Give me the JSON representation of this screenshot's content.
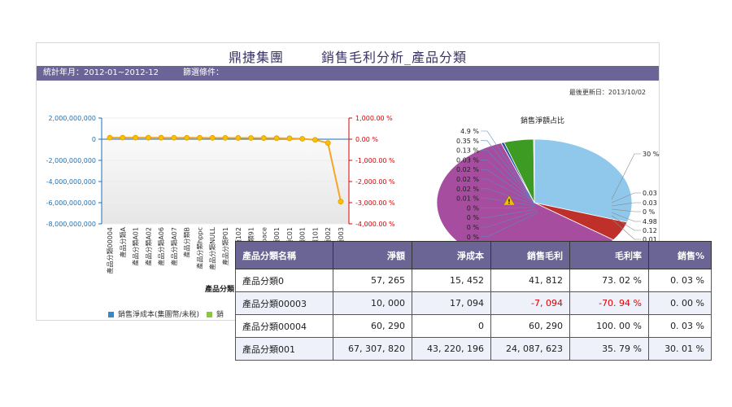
{
  "report": {
    "company": "鼎捷集團",
    "title": "銷售毛利分析_產品分類",
    "period_text": "統計年月：2012-01~2012-12",
    "filter_text": "篩選條件：",
    "updated_text": "最後更新日：2013/10/02"
  },
  "chart_data": [
    {
      "type": "line",
      "y_ticks_left": [
        "2,000,000,000",
        "0",
        "-2,000,000,000",
        "-4,000,000,000",
        "-6,000,000,000",
        "-8,000,000,000"
      ],
      "y_ticks_right": [
        "1,000.00 %",
        "0.00 %",
        "-1,000.00 %",
        "-2,000.00 %",
        "-3,000.00 %",
        "-4,000.00 %"
      ],
      "ylim_left": [
        -8000000000,
        2000000000
      ],
      "ylim_right": [
        -4000,
        1000
      ],
      "categories": [
        "產品分類00004",
        "產品分類A",
        "產品分類A01",
        "產品分類A02",
        "產品分類A06",
        "產品分類A07",
        "產品分類B",
        "產品分類hppc",
        "產品分類NULL",
        "產品分類P01",
        "產品分類102",
        "產品分類91",
        "產品分類pace",
        "產品分類001",
        "產品分類C01",
        "產品分類001",
        "產品分類101",
        "產品分類002",
        "產品分類003"
      ],
      "series": [
        {
          "values": [
            73,
            72,
            71,
            70,
            69,
            67,
            66,
            65,
            64,
            62,
            60,
            58,
            55,
            50,
            40,
            20,
            -30,
            -180,
            -2950
          ]
        }
      ],
      "xlabel": "產品分類",
      "legend": [
        "銷售淨成本(集團幣/未稅)",
        "銷"
      ]
    },
    {
      "type": "pie",
      "title": "銷售淨額占比",
      "labels_left": [
        "4.9 %",
        "0.35 %",
        "0.13 %",
        "0.03 %",
        "0.02 %",
        "0.02 %",
        "0.02 %",
        "0.01 %",
        "0 %",
        "0 %",
        "0 %",
        "0 %"
      ],
      "labels_right": [
        "30 %",
        "0.03 %",
        "0.03 %",
        "0 %",
        "4.98 %",
        "0.12 %",
        "0.01 %"
      ],
      "slices": [
        {
          "value": 30,
          "color": "#8fc8ea"
        },
        {
          "value": 4.98,
          "color": "#c0302a"
        },
        {
          "value": 59.5,
          "color": "#a64d9f"
        },
        {
          "value": 0.5,
          "color": "#2a55a0"
        },
        {
          "value": 4.9,
          "color": "#3d9a22"
        },
        {
          "value": 0.12,
          "color": "#e07a10"
        }
      ]
    }
  ],
  "table": {
    "headers": [
      "產品分類名稱",
      "淨額",
      "淨成本",
      "銷售毛利",
      "毛利率",
      "銷售%"
    ],
    "rows": [
      [
        "產品分類0",
        "57, 265",
        "15, 452",
        "41, 812",
        "73. 02 %",
        "0. 03 %"
      ],
      [
        "產品分類00003",
        "10, 000",
        "17, 094",
        "-7, 094",
        "-70. 94 %",
        "0. 00 %"
      ],
      [
        "產品分類00004",
        "60, 290",
        "0",
        "60, 290",
        "100. 00 %",
        "0. 03 %"
      ],
      [
        "產品分類001",
        "67, 307, 820",
        "43, 220, 196",
        "24, 087, 623",
        "35. 79 %",
        "30. 01 %"
      ]
    ]
  },
  "colors": {
    "header_bg": "#6a6595",
    "accent_blue": "#1f6fb4",
    "accent_red": "#e00000",
    "line_orange": "#f5a623",
    "legend_blue": "#2e8bd0",
    "legend_green": "#8cc63f"
  }
}
